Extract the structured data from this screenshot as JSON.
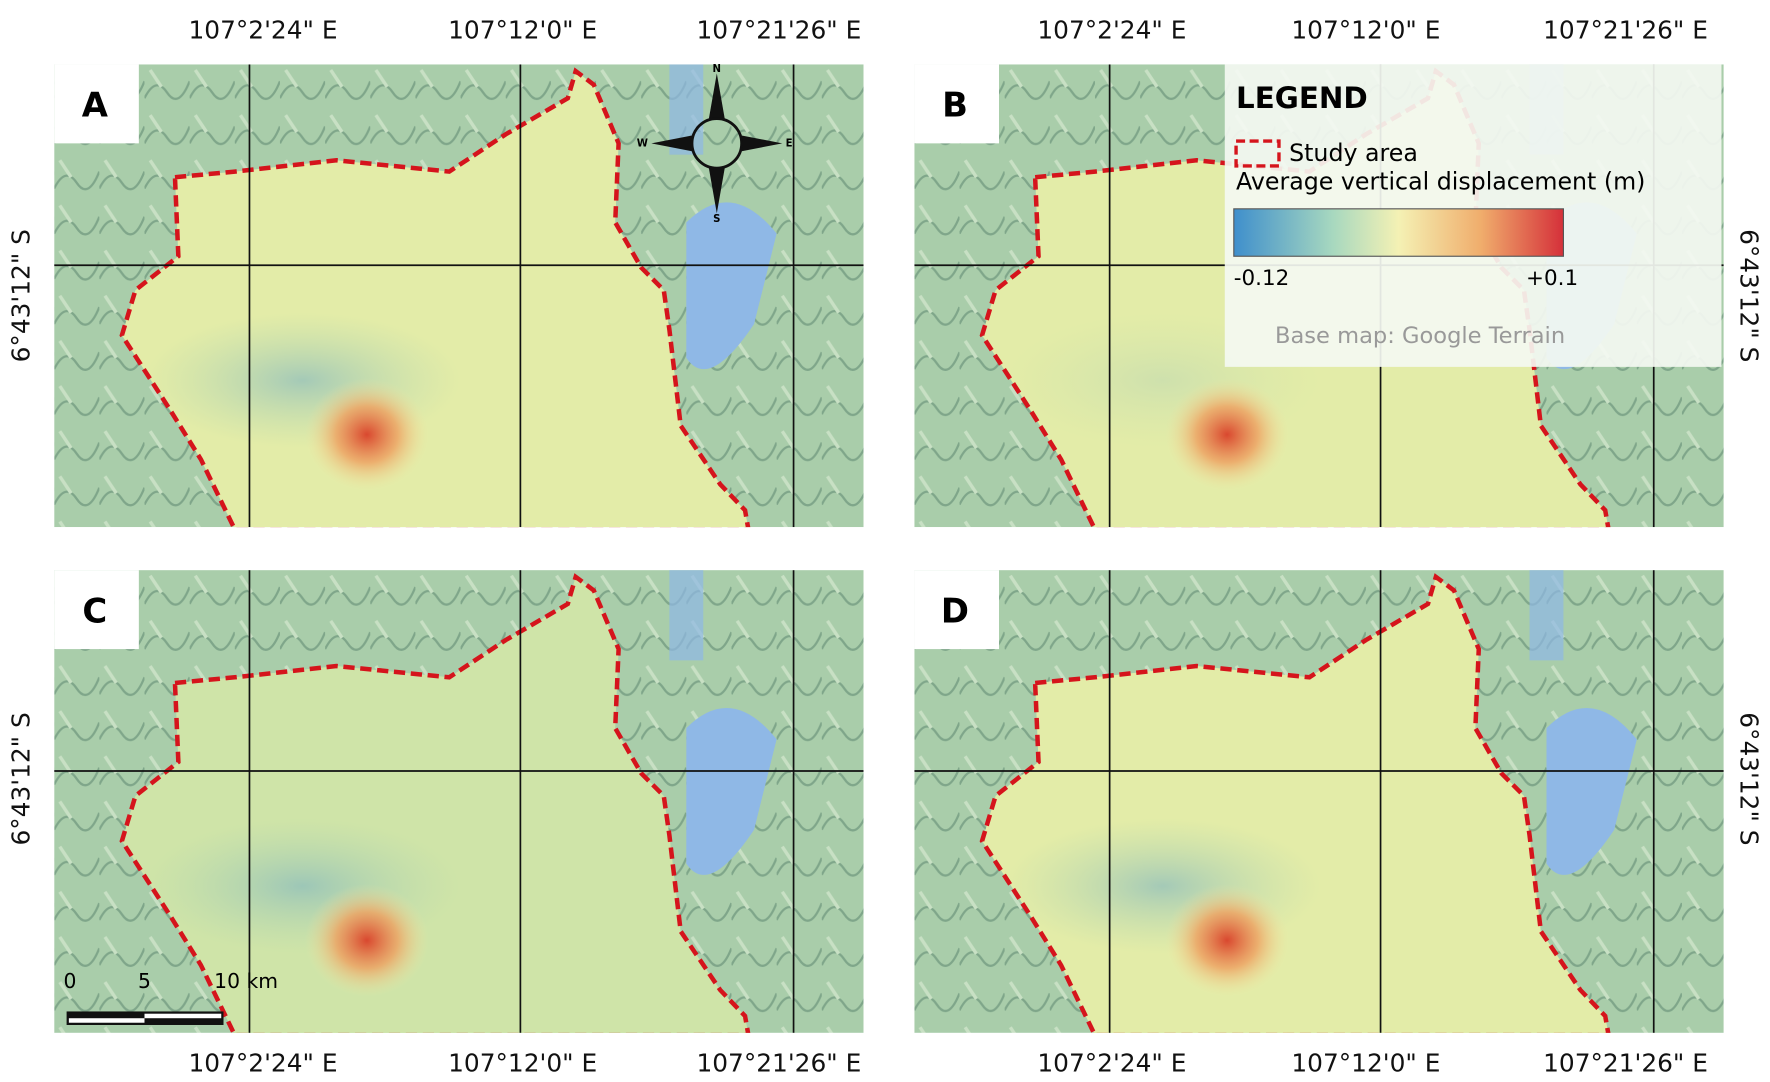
{
  "panels": [
    {
      "label": "A"
    },
    {
      "label": "B"
    },
    {
      "label": "C"
    },
    {
      "label": "D"
    }
  ],
  "coordinates": {
    "longitudes": [
      "107°2'24\" E",
      "107°12'0\" E",
      "107°21'26\" E"
    ],
    "latitude": "6°43'12\" S"
  },
  "legend": {
    "title": "LEGEND",
    "study_area": "Study area",
    "displacement": "Average vertical displacement (m)",
    "min": "-0.12",
    "max": "+0.1",
    "basemap": "Base map: Google Terrain"
  },
  "scale_bar": [
    "0",
    "5",
    "10 km"
  ],
  "compass": {
    "north": "N",
    "south": "S",
    "east": "E",
    "west": "W"
  }
}
